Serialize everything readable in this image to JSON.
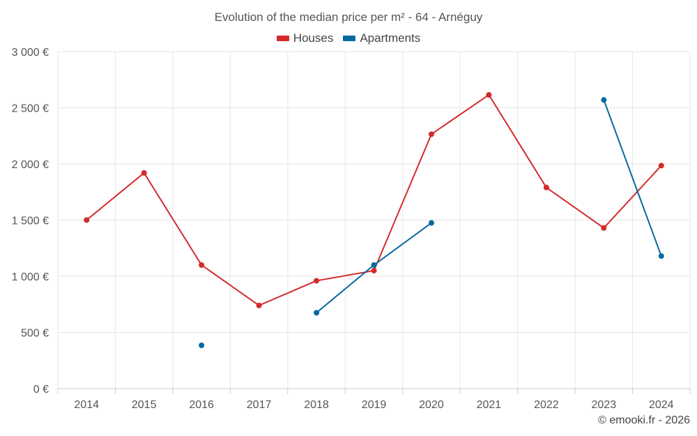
{
  "credit": "© emooki.fr - 2026",
  "colors": {
    "houses": "#d42a2a",
    "apartments": "#066aa0",
    "grid": "#e6e6e6",
    "axis": "#cccccc",
    "text": "#555555"
  },
  "chart_data": {
    "type": "line",
    "title": "Evolution of the median price per m² - 64 - Arnéguy",
    "xlabel": "",
    "ylabel": "",
    "categories": [
      "2014",
      "2015",
      "2016",
      "2017",
      "2018",
      "2019",
      "2020",
      "2021",
      "2022",
      "2023",
      "2024"
    ],
    "ylim": [
      0,
      3000
    ],
    "yticks": [
      0,
      500,
      1000,
      1500,
      2000,
      2500,
      3000
    ],
    "ytick_labels": [
      "0 €",
      "500 €",
      "1 000 €",
      "1 500 €",
      "2 000 €",
      "2 500 €",
      "3 000 €"
    ],
    "grid": true,
    "legend_position": "top-center",
    "series": [
      {
        "name": "Houses",
        "color": "#d42a2a",
        "values": [
          1500,
          1920,
          1100,
          740,
          960,
          1050,
          2265,
          2615,
          1790,
          1430,
          1985
        ]
      },
      {
        "name": "Apartments",
        "color": "#066aa0",
        "values": [
          null,
          null,
          385,
          null,
          675,
          1100,
          1475,
          null,
          null,
          2570,
          1180
        ]
      }
    ]
  }
}
